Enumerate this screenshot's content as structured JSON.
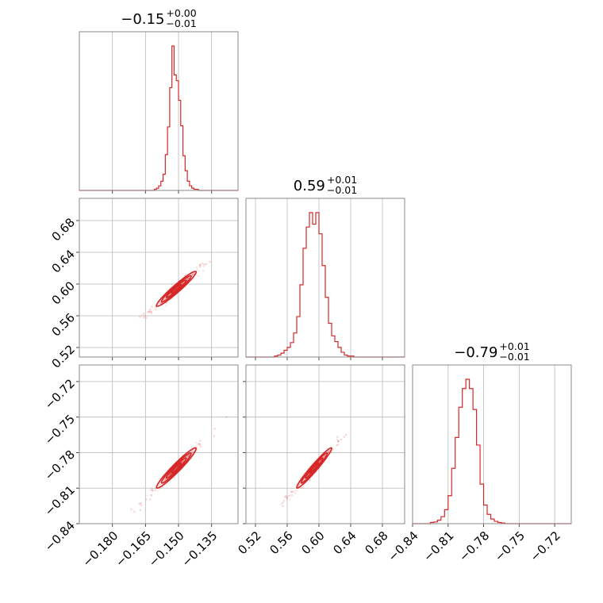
{
  "chart_data": {
    "type": "corner",
    "color": "#d62728",
    "params": [
      {
        "title": {
          "main": "−0.15",
          "sup": "+0.00",
          "sub": "−0.01"
        },
        "median": -0.151,
        "sigma": 0.0045,
        "range": [
          -0.195,
          -0.123
        ],
        "ticks": [
          -0.18,
          -0.165,
          -0.15,
          -0.135
        ],
        "tick_labels": [
          "−0.180",
          "−0.165",
          "−0.150",
          "−0.135"
        ]
      },
      {
        "title": {
          "main": "0.59",
          "sup": "+0.01",
          "sub": "−0.01"
        },
        "median": 0.594,
        "sigma": 0.011,
        "range": [
          0.508,
          0.708
        ],
        "ticks": [
          0.52,
          0.56,
          0.6,
          0.64,
          0.68
        ],
        "tick_labels": [
          "0.52",
          "0.56",
          "0.60",
          "0.64",
          "0.68"
        ]
      },
      {
        "title": {
          "main": "−0.79",
          "sup": "+0.01",
          "sub": "−0.01"
        },
        "median": -0.793,
        "sigma": 0.0085,
        "range": [
          -0.84,
          -0.706
        ],
        "ticks": [
          -0.84,
          -0.81,
          -0.78,
          -0.75,
          -0.72
        ],
        "tick_labels": [
          "−0.84",
          "−0.81",
          "−0.78",
          "−0.75",
          "−0.72"
        ]
      }
    ],
    "histograms": [
      {
        "param": 0,
        "bin_edges": [
          -0.161,
          -0.16,
          -0.159,
          -0.158,
          -0.157,
          -0.156,
          -0.155,
          -0.154,
          -0.153,
          -0.152,
          -0.151,
          -0.15,
          -0.149,
          -0.148,
          -0.147,
          -0.146,
          -0.145,
          -0.144,
          -0.143,
          -0.142,
          -0.141
        ],
        "counts": [
          1,
          2,
          4,
          8,
          14,
          31,
          55,
          89,
          125,
          100,
          95,
          78,
          56,
          30,
          17,
          8,
          4,
          2,
          1,
          1
        ]
      },
      {
        "param": 1,
        "bin_edges": [
          0.544,
          0.548,
          0.552,
          0.556,
          0.56,
          0.564,
          0.568,
          0.572,
          0.576,
          0.58,
          0.584,
          0.588,
          0.592,
          0.596,
          0.6,
          0.604,
          0.608,
          0.612,
          0.616,
          0.62,
          0.624,
          0.628,
          0.632,
          0.636,
          0.64,
          0.644
        ],
        "counts": [
          1,
          2,
          4,
          7,
          10,
          15,
          25,
          42,
          75,
          113,
          135,
          150,
          138,
          150,
          128,
          95,
          62,
          35,
          22,
          16,
          10,
          5,
          2,
          1,
          1
        ]
      },
      {
        "param": 2,
        "bin_edges": [
          -0.825,
          -0.822,
          -0.819,
          -0.816,
          -0.813,
          -0.81,
          -0.807,
          -0.804,
          -0.801,
          -0.798,
          -0.795,
          -0.792,
          -0.789,
          -0.786,
          -0.783,
          -0.78,
          -0.777,
          -0.774,
          -0.771,
          -0.768,
          -0.765,
          -0.762
        ],
        "counts": [
          2,
          3,
          6,
          12,
          24,
          48,
          95,
          148,
          200,
          232,
          248,
          232,
          196,
          135,
          68,
          32,
          16,
          8,
          4,
          2,
          1
        ]
      }
    ],
    "pairs": [
      {
        "x": 0,
        "y": 1,
        "rho": 0.96
      },
      {
        "x": 0,
        "y": 2,
        "rho": 0.96
      },
      {
        "x": 1,
        "y": 2,
        "rho": 0.97
      }
    ],
    "grid": true
  }
}
